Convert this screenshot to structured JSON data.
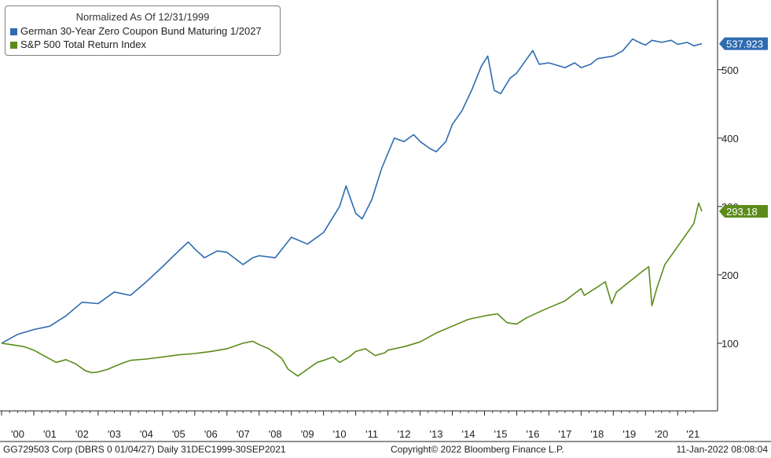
{
  "chart_data": {
    "type": "line",
    "legend_title": "Normalized As Of 12/31/1999",
    "series": [
      {
        "name": "German 30-Year Zero Coupon Bund Maturing 1/2027",
        "color": "#2e6bb0",
        "last_value_label": "537.923",
        "points": [
          [
            2000.0,
            100
          ],
          [
            2000.5,
            113
          ],
          [
            2001.0,
            120
          ],
          [
            2001.5,
            125
          ],
          [
            2002.0,
            140
          ],
          [
            2002.5,
            160
          ],
          [
            2003.0,
            158
          ],
          [
            2003.5,
            175
          ],
          [
            2004.0,
            170
          ],
          [
            2004.5,
            190
          ],
          [
            2005.0,
            212
          ],
          [
            2005.5,
            235
          ],
          [
            2005.8,
            248
          ],
          [
            2006.0,
            238
          ],
          [
            2006.3,
            225
          ],
          [
            2006.7,
            235
          ],
          [
            2007.0,
            233
          ],
          [
            2007.5,
            215
          ],
          [
            2007.8,
            225
          ],
          [
            2008.0,
            228
          ],
          [
            2008.5,
            225
          ],
          [
            2009.0,
            255
          ],
          [
            2009.5,
            245
          ],
          [
            2010.0,
            262
          ],
          [
            2010.5,
            300
          ],
          [
            2010.7,
            330
          ],
          [
            2011.0,
            290
          ],
          [
            2011.2,
            282
          ],
          [
            2011.5,
            310
          ],
          [
            2011.8,
            355
          ],
          [
            2012.0,
            378
          ],
          [
            2012.2,
            400
          ],
          [
            2012.5,
            395
          ],
          [
            2012.8,
            405
          ],
          [
            2013.0,
            395
          ],
          [
            2013.3,
            385
          ],
          [
            2013.5,
            380
          ],
          [
            2013.8,
            395
          ],
          [
            2014.0,
            420
          ],
          [
            2014.3,
            440
          ],
          [
            2014.6,
            470
          ],
          [
            2014.9,
            505
          ],
          [
            2015.1,
            520
          ],
          [
            2015.3,
            470
          ],
          [
            2015.5,
            465
          ],
          [
            2015.8,
            488
          ],
          [
            2016.0,
            495
          ],
          [
            2016.3,
            515
          ],
          [
            2016.5,
            528
          ],
          [
            2016.7,
            508
          ],
          [
            2017.0,
            510
          ],
          [
            2017.5,
            503
          ],
          [
            2017.8,
            510
          ],
          [
            2018.0,
            503
          ],
          [
            2018.3,
            508
          ],
          [
            2018.5,
            516
          ],
          [
            2019.0,
            520
          ],
          [
            2019.3,
            528
          ],
          [
            2019.6,
            545
          ],
          [
            2019.8,
            540
          ],
          [
            2020.0,
            536
          ],
          [
            2020.2,
            543
          ],
          [
            2020.5,
            540
          ],
          [
            2020.8,
            543
          ],
          [
            2021.0,
            537
          ],
          [
            2021.3,
            540
          ],
          [
            2021.5,
            535
          ],
          [
            2021.75,
            538
          ]
        ]
      },
      {
        "name": "S&P 500 Total Return Index",
        "color": "#5b8c1a",
        "last_value_label": "293.18",
        "points": [
          [
            2000.0,
            100
          ],
          [
            2000.3,
            98
          ],
          [
            2000.7,
            95
          ],
          [
            2001.0,
            90
          ],
          [
            2001.3,
            82
          ],
          [
            2001.7,
            72
          ],
          [
            2002.0,
            76
          ],
          [
            2002.3,
            70
          ],
          [
            2002.6,
            60
          ],
          [
            2002.8,
            57
          ],
          [
            2003.0,
            58
          ],
          [
            2003.3,
            62
          ],
          [
            2003.7,
            70
          ],
          [
            2004.0,
            75
          ],
          [
            2004.5,
            77
          ],
          [
            2005.0,
            80
          ],
          [
            2005.5,
            83
          ],
          [
            2006.0,
            85
          ],
          [
            2006.5,
            88
          ],
          [
            2007.0,
            92
          ],
          [
            2007.5,
            100
          ],
          [
            2007.8,
            103
          ],
          [
            2008.0,
            98
          ],
          [
            2008.3,
            92
          ],
          [
            2008.7,
            78
          ],
          [
            2008.9,
            62
          ],
          [
            2009.2,
            52
          ],
          [
            2009.5,
            62
          ],
          [
            2009.8,
            72
          ],
          [
            2010.0,
            75
          ],
          [
            2010.3,
            80
          ],
          [
            2010.5,
            72
          ],
          [
            2010.8,
            80
          ],
          [
            2011.0,
            88
          ],
          [
            2011.3,
            92
          ],
          [
            2011.6,
            82
          ],
          [
            2011.9,
            86
          ],
          [
            2012.0,
            90
          ],
          [
            2012.5,
            95
          ],
          [
            2013.0,
            102
          ],
          [
            2013.5,
            115
          ],
          [
            2014.0,
            125
          ],
          [
            2014.5,
            135
          ],
          [
            2015.0,
            140
          ],
          [
            2015.4,
            143
          ],
          [
            2015.7,
            130
          ],
          [
            2016.0,
            128
          ],
          [
            2016.3,
            137
          ],
          [
            2016.8,
            148
          ],
          [
            2017.0,
            152
          ],
          [
            2017.5,
            162
          ],
          [
            2018.0,
            180
          ],
          [
            2018.1,
            170
          ],
          [
            2018.5,
            182
          ],
          [
            2018.75,
            190
          ],
          [
            2018.95,
            158
          ],
          [
            2019.1,
            175
          ],
          [
            2019.5,
            190
          ],
          [
            2019.9,
            205
          ],
          [
            2020.1,
            212
          ],
          [
            2020.2,
            155
          ],
          [
            2020.35,
            180
          ],
          [
            2020.6,
            215
          ],
          [
            2020.9,
            235
          ],
          [
            2021.2,
            255
          ],
          [
            2021.5,
            275
          ],
          [
            2021.65,
            305
          ],
          [
            2021.75,
            293
          ]
        ]
      }
    ],
    "y_axis": {
      "position": "right",
      "ticks": [
        100,
        200,
        300,
        400,
        500
      ],
      "ylim": [
        0,
        600
      ]
    },
    "x_axis": {
      "ticks": [
        {
          "label": "'00",
          "year": 2000
        },
        {
          "label": "'01",
          "year": 2001
        },
        {
          "label": "'02",
          "year": 2002
        },
        {
          "label": "'03",
          "year": 2003
        },
        {
          "label": "'04",
          "year": 2004
        },
        {
          "label": "'05",
          "year": 2005
        },
        {
          "label": "'06",
          "year": 2006
        },
        {
          "label": "'07",
          "year": 2007
        },
        {
          "label": "'08",
          "year": 2008
        },
        {
          "label": "'09",
          "year": 2009
        },
        {
          "label": "'10",
          "year": 2010
        },
        {
          "label": "'11",
          "year": 2011
        },
        {
          "label": "'12",
          "year": 2012
        },
        {
          "label": "'13",
          "year": 2013
        },
        {
          "label": "'14",
          "year": 2014
        },
        {
          "label": "'15",
          "year": 2015
        },
        {
          "label": "'16",
          "year": 2016
        },
        {
          "label": "'17",
          "year": 2017
        },
        {
          "label": "'18",
          "year": 2018
        },
        {
          "label": "'19",
          "year": 2019
        },
        {
          "label": "'20",
          "year": 2020
        },
        {
          "label": "'21",
          "year": 2021
        }
      ]
    },
    "legend_placement": "top-left",
    "grid": false
  },
  "footer": {
    "left": "GG729503 Corp (DBRS 0 01/04/27)  Daily 31DEC1999-30SEP2021",
    "center": "Copyright© 2022 Bloomberg Finance L.P.",
    "right": "11-Jan-2022 08:08:04"
  }
}
